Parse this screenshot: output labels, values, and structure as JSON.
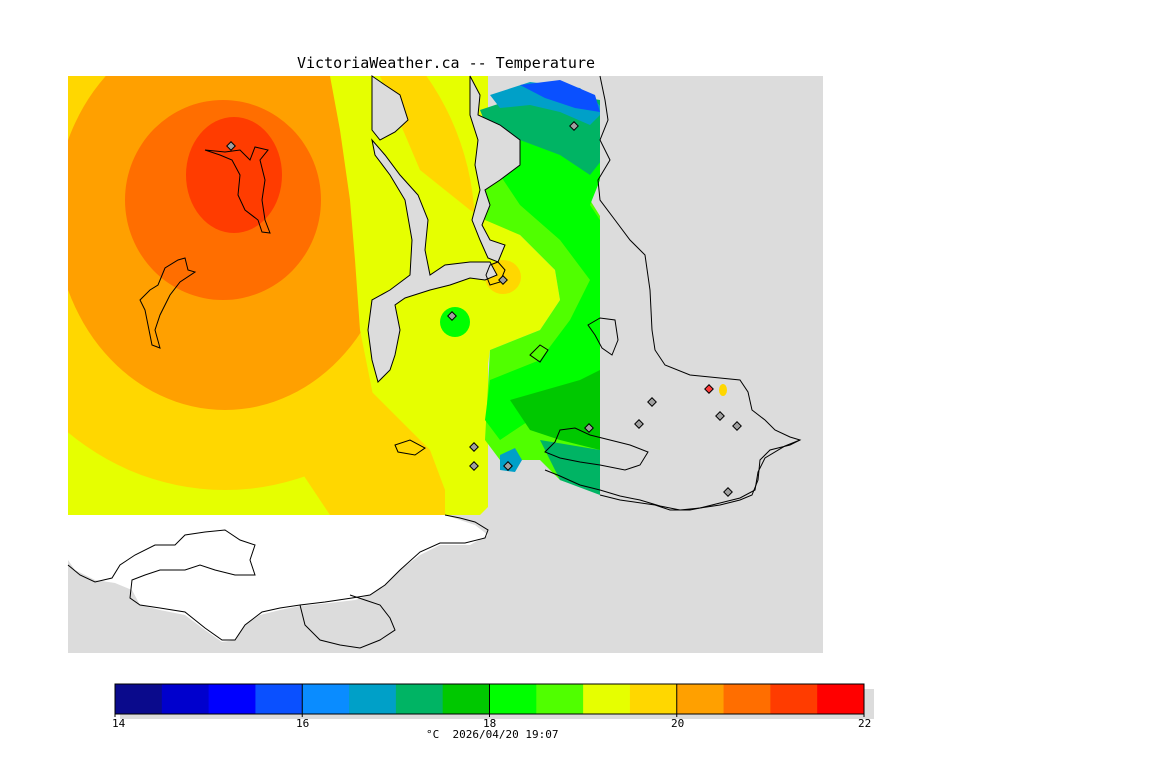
{
  "title": "VictoriaWeather.ca -- Temperature",
  "legend": {
    "caption": "°C  2026/04/20 19:07",
    "min": 14,
    "max": 22,
    "tick_labels": [
      "14",
      "16",
      "18",
      "20",
      "22"
    ],
    "colors": [
      "#0a0a8c",
      "#0000cd",
      "#0000ff",
      "#0a50ff",
      "#0a8cff",
      "#00a0c8",
      "#00b464",
      "#00c800",
      "#00ff00",
      "#50ff00",
      "#e6ff00",
      "#ffd700",
      "#ffa000",
      "#ff6e00",
      "#ff3c00",
      "#ff0000"
    ]
  },
  "stations_count_note": "",
  "colors": {
    "land_gray": "#dcdcdc",
    "water_white": "#ffffff",
    "coast": "#000000"
  }
}
